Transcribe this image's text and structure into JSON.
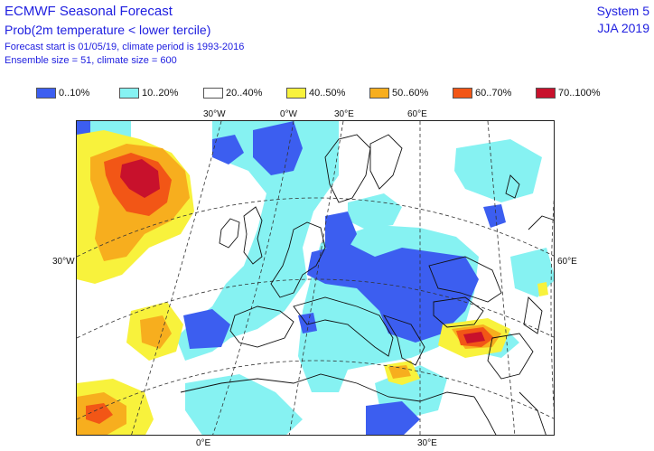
{
  "header": {
    "title": "ECMWF Seasonal Forecast",
    "subtitle": "Prob(2m temperature < lower tercile)",
    "forecast_info": "Forecast start is 01/05/19, climate period is 1993-2016",
    "ensemble_info": "Ensemble size = 51, climate size = 600",
    "system": "System 5",
    "season": "JJA 2019"
  },
  "legend": [
    {
      "label": "0..10%",
      "color": "#3c5ef0"
    },
    {
      "label": "10..20%",
      "color": "#86f2f2"
    },
    {
      "label": "20..40%",
      "color": "#ffffff"
    },
    {
      "label": "40..50%",
      "color": "#f8f23c"
    },
    {
      "label": "50..60%",
      "color": "#f7ae1e"
    },
    {
      "label": "60..70%",
      "color": "#f25616"
    },
    {
      "label": "70..100%",
      "color": "#c8112c"
    }
  ],
  "coords": {
    "top": [
      "30°W",
      "0°W",
      "30°E",
      "60°E"
    ],
    "left": "30°W",
    "right": "60°E",
    "bottom": [
      "0°E",
      "30°E"
    ]
  }
}
